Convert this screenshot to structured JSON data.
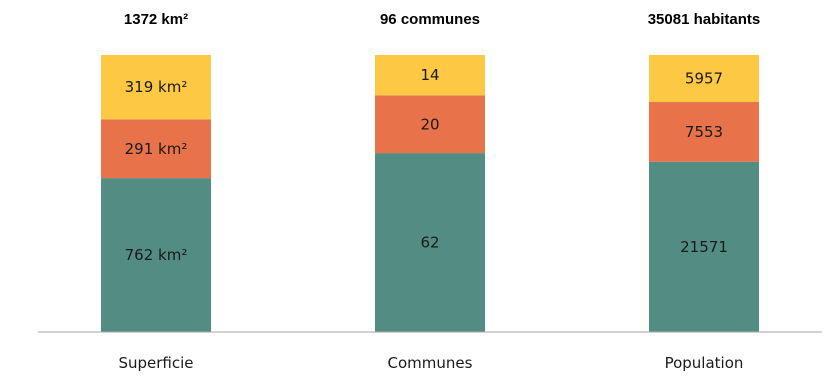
{
  "chart_data": {
    "type": "bar",
    "stacked": true,
    "categories": [
      "Superficie",
      "Communes",
      "Population"
    ],
    "totals": [
      "1372 km²",
      "96 communes",
      "35081 habitants"
    ],
    "series": [
      {
        "values": [
          762,
          62,
          21571
        ],
        "labels": [
          "762 km²",
          "62",
          "21571"
        ],
        "color": "#528C83"
      },
      {
        "values": [
          291,
          20,
          7553
        ],
        "labels": [
          "291 km²",
          "20",
          "7553"
        ],
        "color": "#E8734A"
      },
      {
        "values": [
          319,
          14,
          5957
        ],
        "labels": [
          "319 km²",
          "14",
          "5957"
        ],
        "color": "#FDC844"
      }
    ],
    "legend": "none",
    "grid": false,
    "axis_color": "#a6a6a6"
  }
}
